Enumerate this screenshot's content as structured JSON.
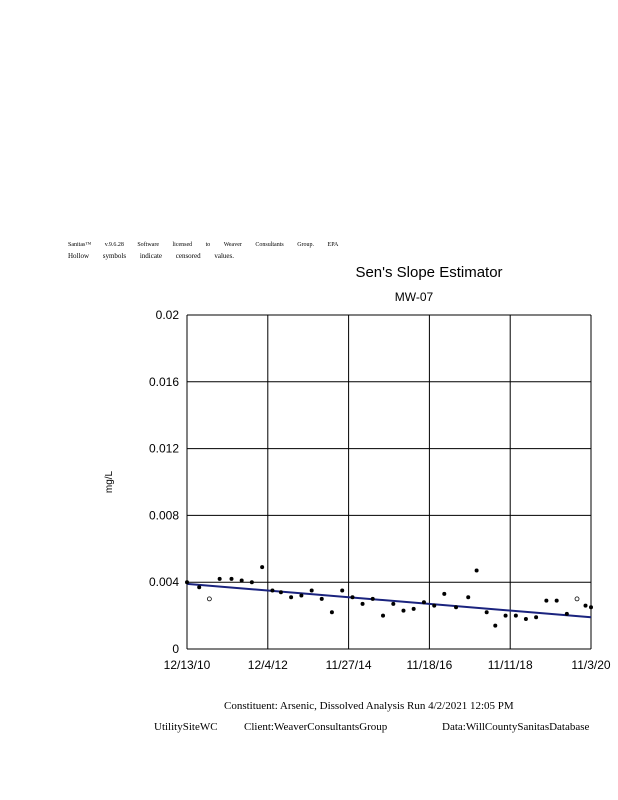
{
  "header": {
    "line1": "Sanitas™ v.9.6.28 Software licensed to Weaver Consultants Group. EPA",
    "line2": "Hollow symbols indicate censored values."
  },
  "footer": {
    "constituent": "Constituent: Arsenic, Dissolved Analysis Run 4/2/2021 12:05 PM",
    "site": "UtilitySiteWC",
    "client": "Client:WeaverConsultantsGroup",
    "data": "Data:WillCountySanitasDatabase"
  },
  "colors": {
    "trend_line": "#1a237e",
    "points": "#000000"
  },
  "chart_data": {
    "type": "scatter",
    "title": "Sen's Slope Estimator",
    "subtitle": "MW-07",
    "ylabel": "mg/L",
    "xlabel": "",
    "ylim": [
      0,
      0.02
    ],
    "yticks": [
      "0",
      "0.004",
      "0.008",
      "0.012",
      "0.016",
      "0.02"
    ],
    "xlim": [
      "2010-12-13",
      "2020-11-03"
    ],
    "xticks": [
      "12/13/10",
      "12/4/12",
      "11/27/14",
      "11/18/16",
      "11/11/18",
      "11/3/20"
    ],
    "grid": true,
    "series": [
      {
        "points": [
          {
            "x": "2010-12-13",
            "y": 0.004,
            "censored": false
          },
          {
            "x": "2011-04-01",
            "y": 0.0037,
            "censored": false
          },
          {
            "x": "2011-07-01",
            "y": 0.003,
            "censored": true
          },
          {
            "x": "2011-10-01",
            "y": 0.0042,
            "censored": false
          },
          {
            "x": "2012-01-15",
            "y": 0.0042,
            "censored": false
          },
          {
            "x": "2012-04-15",
            "y": 0.0041,
            "censored": false
          },
          {
            "x": "2012-07-15",
            "y": 0.004,
            "censored": false
          },
          {
            "x": "2012-10-15",
            "y": 0.0049,
            "censored": false
          },
          {
            "x": "2013-01-15",
            "y": 0.0035,
            "censored": false
          },
          {
            "x": "2013-04-01",
            "y": 0.0034,
            "censored": false
          },
          {
            "x": "2013-07-01",
            "y": 0.0031,
            "censored": false
          },
          {
            "x": "2013-10-01",
            "y": 0.0032,
            "censored": false
          },
          {
            "x": "2014-01-01",
            "y": 0.0035,
            "censored": false
          },
          {
            "x": "2014-04-01",
            "y": 0.003,
            "censored": false
          },
          {
            "x": "2014-07-01",
            "y": 0.0022,
            "censored": false
          },
          {
            "x": "2014-10-01",
            "y": 0.0035,
            "censored": false
          },
          {
            "x": "2015-01-01",
            "y": 0.0031,
            "censored": false
          },
          {
            "x": "2015-04-01",
            "y": 0.0027,
            "censored": false
          },
          {
            "x": "2015-07-01",
            "y": 0.003,
            "censored": false
          },
          {
            "x": "2015-10-01",
            "y": 0.002,
            "censored": false
          },
          {
            "x": "2016-01-01",
            "y": 0.0027,
            "censored": false
          },
          {
            "x": "2016-04-01",
            "y": 0.0023,
            "censored": false
          },
          {
            "x": "2016-07-01",
            "y": 0.0024,
            "censored": false
          },
          {
            "x": "2016-10-01",
            "y": 0.0028,
            "censored": false
          },
          {
            "x": "2017-01-01",
            "y": 0.0026,
            "censored": false
          },
          {
            "x": "2017-04-01",
            "y": 0.0033,
            "censored": false
          },
          {
            "x": "2017-07-15",
            "y": 0.0025,
            "censored": false
          },
          {
            "x": "2017-11-01",
            "y": 0.0031,
            "censored": false
          },
          {
            "x": "2018-01-15",
            "y": 0.0047,
            "censored": false
          },
          {
            "x": "2018-04-15",
            "y": 0.0022,
            "censored": false
          },
          {
            "x": "2018-07-01",
            "y": 0.0014,
            "censored": false
          },
          {
            "x": "2018-10-01",
            "y": 0.002,
            "censored": false
          },
          {
            "x": "2019-01-01",
            "y": 0.002,
            "censored": false
          },
          {
            "x": "2019-04-01",
            "y": 0.0018,
            "censored": false
          },
          {
            "x": "2019-07-01",
            "y": 0.0019,
            "censored": false
          },
          {
            "x": "2019-10-01",
            "y": 0.0029,
            "censored": false
          },
          {
            "x": "2020-01-01",
            "y": 0.0029,
            "censored": false
          },
          {
            "x": "2020-04-01",
            "y": 0.0021,
            "censored": false
          },
          {
            "x": "2020-07-01",
            "y": 0.003,
            "censored": true
          },
          {
            "x": "2020-09-15",
            "y": 0.0026,
            "censored": false
          },
          {
            "x": "2020-11-03",
            "y": 0.0025,
            "censored": false
          }
        ]
      }
    ],
    "trend_line": {
      "x": [
        "2010-12-13",
        "2020-11-03"
      ],
      "y": [
        0.0039,
        0.0019
      ]
    }
  }
}
